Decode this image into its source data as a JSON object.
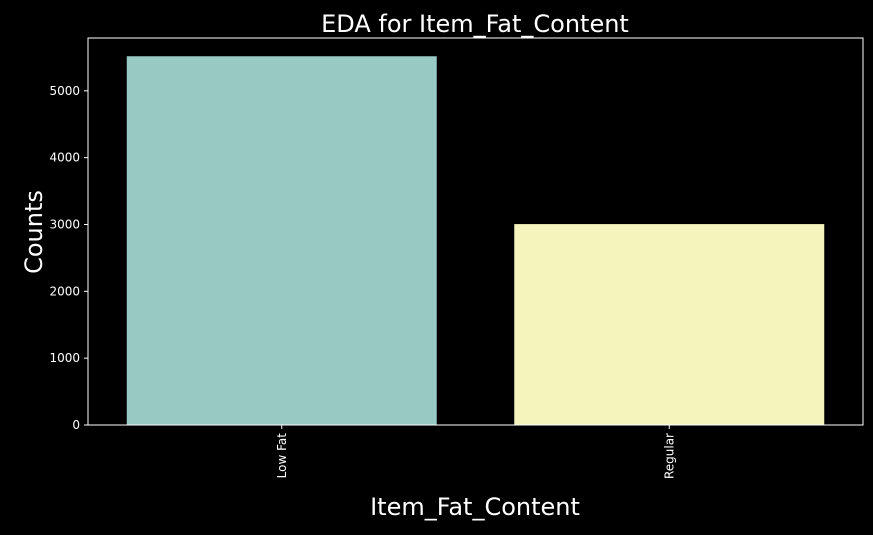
{
  "chart_data": {
    "type": "bar",
    "title": "EDA for Item_Fat_Content",
    "xlabel": "Item_Fat_Content",
    "ylabel": "Counts",
    "categories": [
      "Low Fat",
      "Regular"
    ],
    "values": [
      5517,
      3006
    ],
    "ylim": [
      0,
      5790
    ],
    "yticks": [
      0,
      1000,
      2000,
      3000,
      4000,
      5000
    ],
    "bar_colors": [
      "#98c9c3",
      "#f4f4bc"
    ],
    "background_color": "#000000",
    "foreground_color": "#ffffff",
    "x_tick_rotation": "vertical",
    "grid": false,
    "legend": "none"
  }
}
